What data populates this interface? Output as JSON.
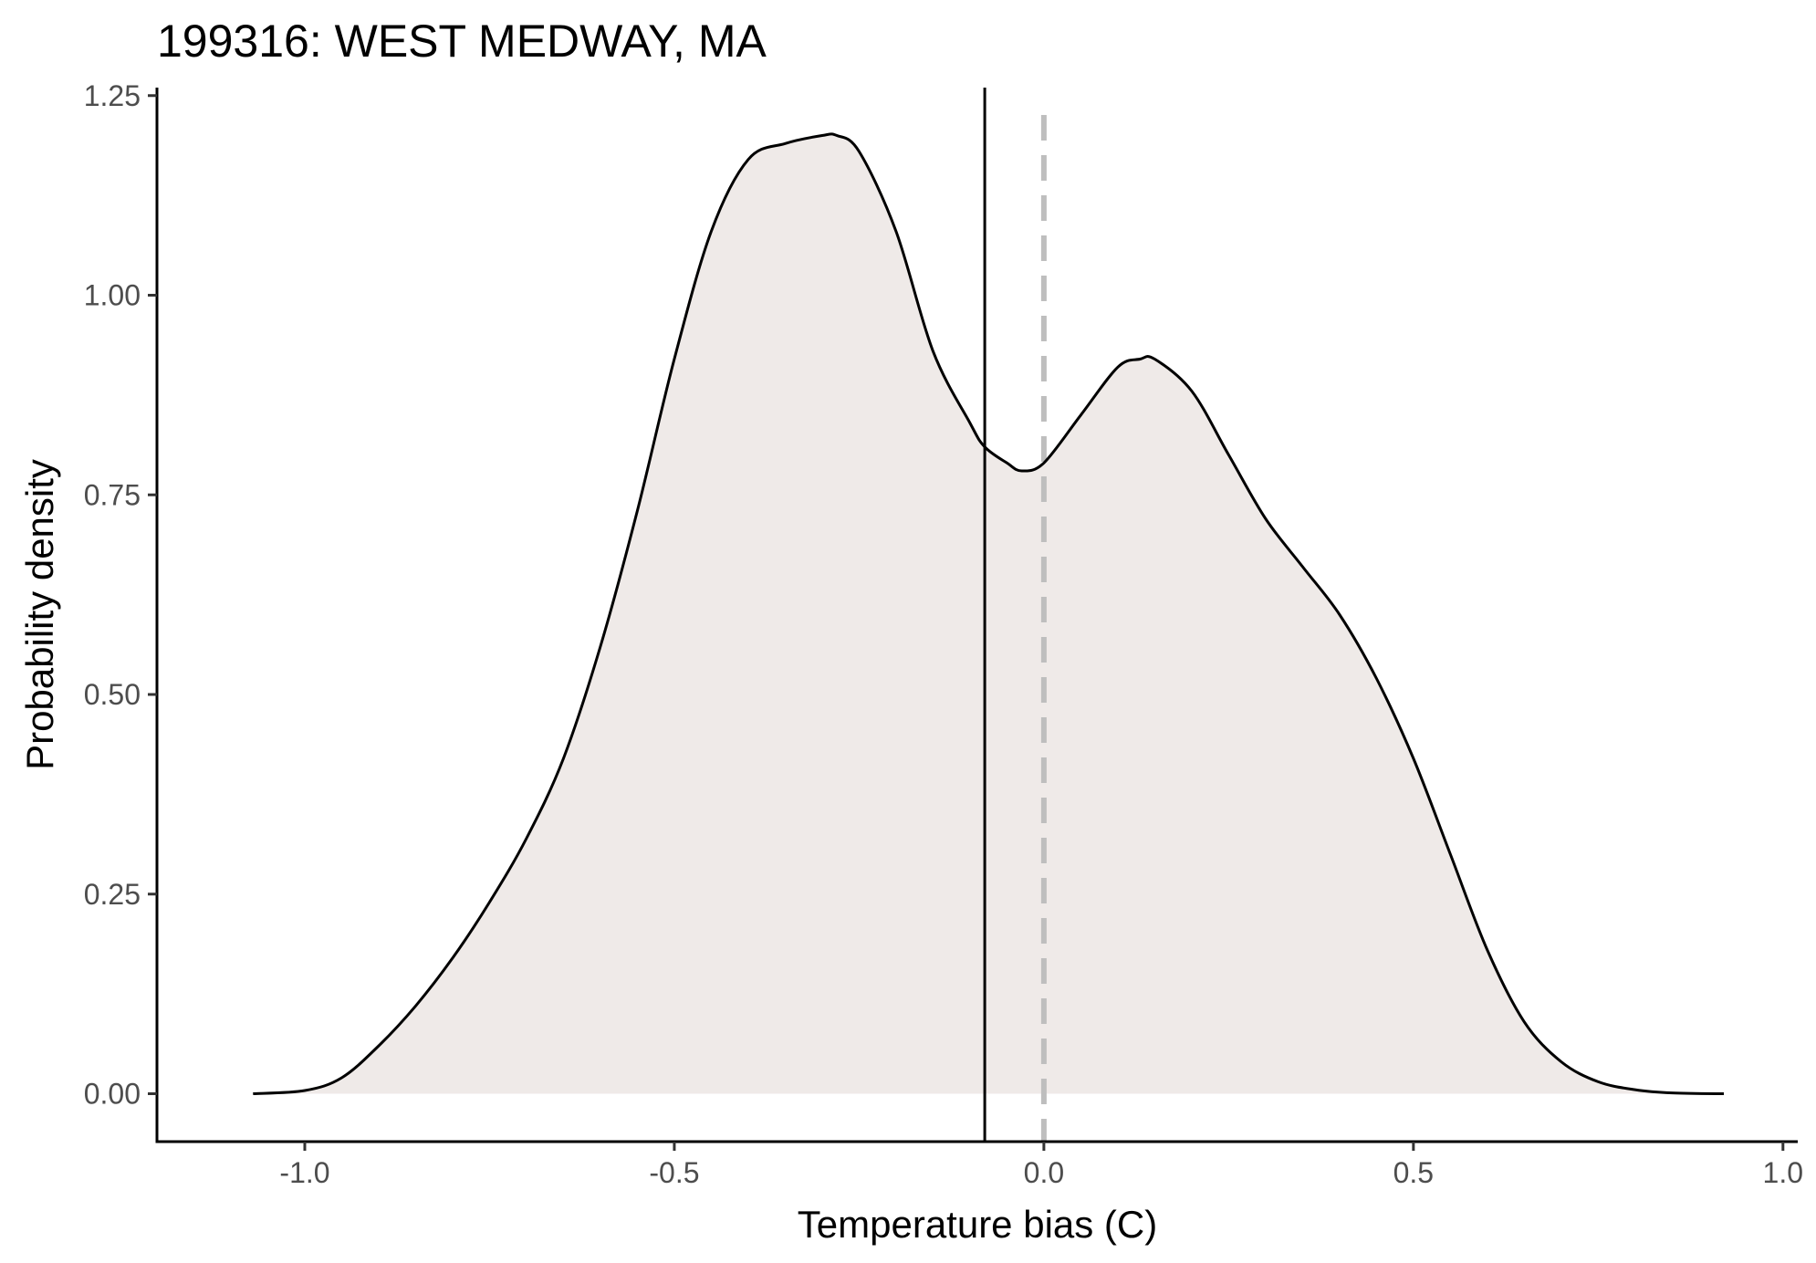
{
  "chart_data": {
    "type": "area",
    "title": "199316: WEST MEDWAY, MA",
    "xlabel": "Temperature bias (C)",
    "ylabel": "Probability density",
    "xlim": [
      -1.2,
      1.02
    ],
    "ylim": [
      -0.06,
      1.26
    ],
    "x_ticks": [
      -1.0,
      -0.5,
      0.0,
      0.5,
      1.0
    ],
    "x_tick_labels": [
      "-1.0",
      "-0.5",
      "0.0",
      "0.5",
      "1.0"
    ],
    "y_ticks": [
      0.0,
      0.25,
      0.5,
      0.75,
      1.0,
      1.25
    ],
    "y_tick_labels": [
      "0.00",
      "0.25",
      "0.50",
      "0.75",
      "1.00",
      "1.25"
    ],
    "grid": false,
    "fill_color": "#efeae8",
    "line_color": "#000000",
    "reference_lines": [
      {
        "x": -0.08,
        "style": "solid",
        "color": "#000000"
      },
      {
        "x": 0.0,
        "style": "dashed",
        "color": "#bebebe"
      }
    ],
    "series": [
      {
        "x": [
          -1.07,
          -1.0,
          -0.95,
          -0.9,
          -0.85,
          -0.8,
          -0.75,
          -0.7,
          -0.65,
          -0.6,
          -0.55,
          -0.5,
          -0.45,
          -0.4,
          -0.35,
          -0.3,
          -0.28,
          -0.25,
          -0.2,
          -0.15,
          -0.1,
          -0.08,
          -0.05,
          -0.03,
          0.0,
          0.05,
          0.1,
          0.13,
          0.15,
          0.2,
          0.25,
          0.3,
          0.35,
          0.4,
          0.45,
          0.5,
          0.55,
          0.6,
          0.65,
          0.7,
          0.75,
          0.8,
          0.85,
          0.92
        ],
        "y": [
          0.0,
          0.004,
          0.02,
          0.06,
          0.11,
          0.17,
          0.24,
          0.32,
          0.42,
          0.56,
          0.73,
          0.92,
          1.08,
          1.17,
          1.19,
          1.2,
          1.2,
          1.18,
          1.08,
          0.93,
          0.84,
          0.81,
          0.79,
          0.78,
          0.79,
          0.85,
          0.91,
          0.92,
          0.92,
          0.88,
          0.8,
          0.72,
          0.66,
          0.6,
          0.52,
          0.42,
          0.3,
          0.18,
          0.09,
          0.04,
          0.015,
          0.005,
          0.001,
          0.0
        ]
      }
    ]
  }
}
